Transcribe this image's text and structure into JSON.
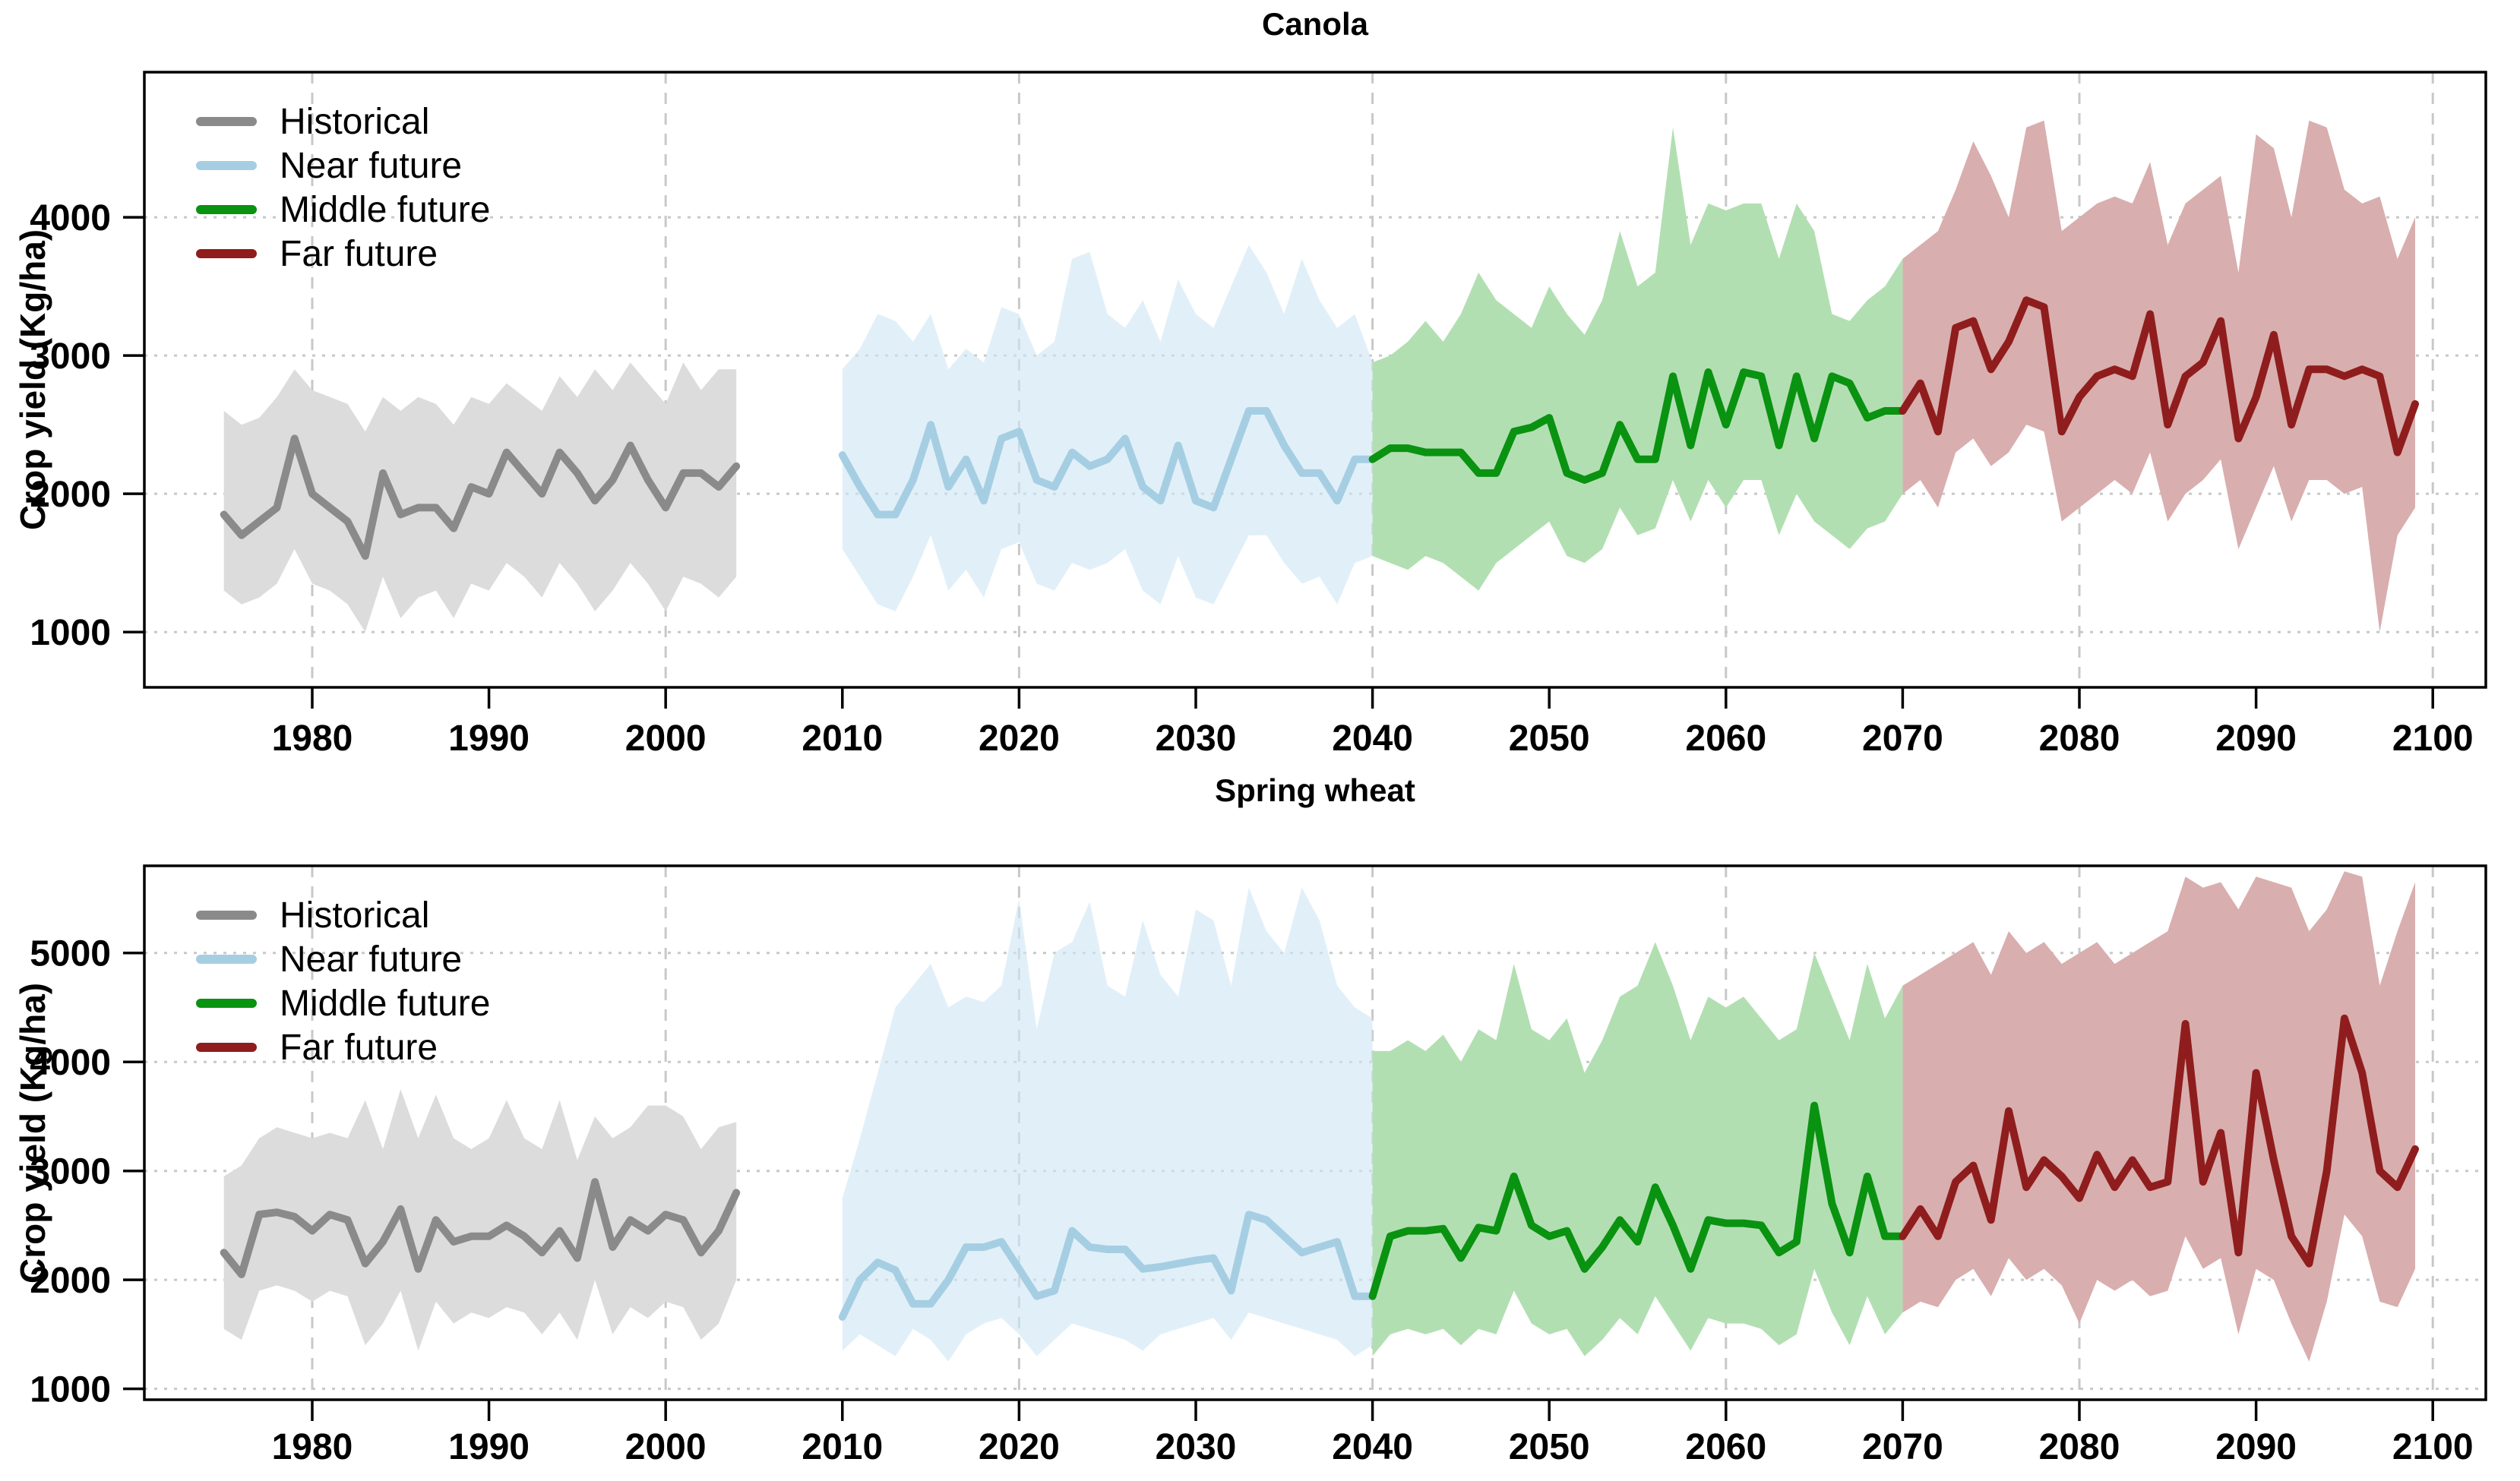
{
  "figure": {
    "background": "#ffffff",
    "description": "Two stacked time-series panels of simulated crop yield with uncertainty bands for historical, near, middle and far future periods"
  },
  "colors": {
    "historical_line": "#8a8a8a",
    "historical_band": "#dcdcdc",
    "near_future_line": "#a6cee3",
    "near_future_band": "#cfe7f3",
    "middle_future_line": "#0a9211",
    "middle_future_band": "#b2dfb2",
    "far_future_line": "#8f1d1d",
    "far_future_band": "#d9aeae",
    "grid": "#c8c8c8",
    "axis": "#000000"
  },
  "chart_data": [
    {
      "type": "line",
      "title": "Canola",
      "y_axis": {
        "label": "Crop yield (Kg/ha)",
        "ticks": [
          1000,
          2000,
          3000,
          4000
        ],
        "range": [
          600,
          5050
        ]
      },
      "x_axis": {
        "ticks": [
          1980,
          1990,
          2000,
          2010,
          2020,
          2030,
          2040,
          2050,
          2060,
          2070,
          2080,
          2090,
          2100
        ],
        "gridlines": [
          1980,
          2000,
          2020,
          2040,
          2060,
          2080,
          2100
        ],
        "range": [
          1970.5,
          2103
        ]
      },
      "grid": "on",
      "legend_position": "top-left",
      "segments": [
        {
          "name": "Historical",
          "line_color": "#8a8a8a",
          "band_color": "#dcdcdc",
          "band_opacity": 1,
          "year_start": 1975,
          "year_end": 2004,
          "line": [
            1850,
            1700,
            1800,
            1900,
            2400,
            2000,
            1900,
            1800,
            1550,
            2150,
            1850,
            1900,
            1900,
            1750,
            2050,
            2000,
            2300,
            2150,
            2000,
            2300,
            2150,
            1950,
            2100,
            2350,
            2100,
            1900,
            2150,
            2150,
            2050,
            2200
          ],
          "band_high": [
            2600,
            2500,
            2550,
            2700,
            2900,
            2750,
            2700,
            2650,
            2450,
            2700,
            2600,
            2700,
            2650,
            2500,
            2700,
            2650,
            2800,
            2700,
            2600,
            2850,
            2700,
            2900,
            2750,
            2950,
            2800,
            2650,
            2950,
            2750,
            2900,
            2900
          ],
          "band_low": [
            1300,
            1200,
            1250,
            1350,
            1600,
            1350,
            1300,
            1200,
            1000,
            1400,
            1100,
            1250,
            1300,
            1100,
            1350,
            1300,
            1500,
            1400,
            1250,
            1500,
            1350,
            1150,
            1300,
            1500,
            1350,
            1150,
            1400,
            1350,
            1250,
            1400
          ]
        },
        {
          "name": "Near future",
          "line_color": "#a6cee3",
          "band_color": "#cfe7f3",
          "band_opacity": 0.62,
          "year_start": 2010,
          "year_end": 2040,
          "line": [
            2280,
            2050,
            1850,
            1850,
            2100,
            2500,
            2050,
            2250,
            1950,
            2400,
            2450,
            2100,
            2050,
            2300,
            2200,
            2250,
            2400,
            2050,
            1950,
            2350,
            1950,
            1900,
            2250,
            2600,
            2600,
            2350,
            2150,
            2150,
            1950,
            2250,
            2250
          ],
          "band_high": [
            2900,
            3050,
            3300,
            3250,
            3100,
            3300,
            2900,
            3050,
            2950,
            3350,
            3300,
            3000,
            3100,
            3700,
            3750,
            3300,
            3200,
            3400,
            3100,
            3550,
            3300,
            3200,
            3500,
            3800,
            3600,
            3300,
            3700,
            3400,
            3200,
            3300,
            2950
          ],
          "band_low": [
            1600,
            1400,
            1200,
            1150,
            1400,
            1700,
            1300,
            1450,
            1250,
            1600,
            1650,
            1350,
            1300,
            1500,
            1450,
            1500,
            1600,
            1300,
            1200,
            1550,
            1250,
            1200,
            1450,
            1700,
            1700,
            1500,
            1350,
            1400,
            1200,
            1500,
            1550
          ]
        },
        {
          "name": "Middle future",
          "line_color": "#0a9211",
          "band_color": "#b2dfb2",
          "band_opacity": 1,
          "year_start": 2040,
          "year_end": 2070,
          "line": [
            2250,
            2330,
            2330,
            2300,
            2300,
            2300,
            2150,
            2150,
            2450,
            2480,
            2550,
            2150,
            2100,
            2150,
            2500,
            2250,
            2250,
            2850,
            2350,
            2880,
            2500,
            2880,
            2850,
            2350,
            2850,
            2400,
            2850,
            2800,
            2550,
            2600,
            2600
          ],
          "band_high": [
            2950,
            3000,
            3100,
            3250,
            3100,
            3300,
            3600,
            3400,
            3300,
            3200,
            3500,
            3300,
            3150,
            3400,
            3900,
            3500,
            3600,
            4650,
            3800,
            4100,
            4050,
            4100,
            4100,
            3700,
            4100,
            3900,
            3300,
            3250,
            3400,
            3500,
            3700
          ],
          "band_low": [
            1550,
            1500,
            1450,
            1550,
            1500,
            1400,
            1300,
            1500,
            1600,
            1700,
            1800,
            1550,
            1500,
            1600,
            1900,
            1700,
            1750,
            2100,
            1800,
            2100,
            1900,
            2100,
            2100,
            1700,
            2000,
            1800,
            1700,
            1600,
            1750,
            1800,
            2000
          ]
        },
        {
          "name": "Far future",
          "line_color": "#8f1d1d",
          "band_color": "#d9aeae",
          "band_opacity": 1,
          "year_start": 2070,
          "year_end": 2099,
          "line": [
            2600,
            2800,
            2450,
            3200,
            3250,
            2900,
            3100,
            3400,
            3350,
            2450,
            2700,
            2850,
            2900,
            2850,
            3300,
            2500,
            2850,
            2950,
            3250,
            2400,
            2700,
            3150,
            2500,
            2900,
            2900,
            2850,
            2900,
            2850,
            2300,
            2650
          ],
          "band_high": [
            3700,
            3800,
            3900,
            4200,
            4550,
            4300,
            4000,
            4650,
            4700,
            3900,
            4000,
            4100,
            4150,
            4100,
            4400,
            3800,
            4100,
            4200,
            4300,
            3600,
            4600,
            4500,
            4000,
            4700,
            4650,
            4200,
            4100,
            4150,
            3700,
            4000
          ],
          "band_low": [
            2000,
            2100,
            1900,
            2300,
            2400,
            2200,
            2300,
            2500,
            2450,
            1800,
            1900,
            2000,
            2100,
            2000,
            2300,
            1800,
            2000,
            2100,
            2250,
            1600,
            1900,
            2200,
            1800,
            2100,
            2100,
            2000,
            2050,
            1000,
            1700,
            1900
          ]
        }
      ]
    },
    {
      "type": "line",
      "title": "Spring wheat",
      "y_axis": {
        "label": "Crop yield (Kg/ha)",
        "ticks": [
          1000,
          2000,
          3000,
          4000,
          5000
        ],
        "range": [
          900,
          5800
        ]
      },
      "x_axis": {
        "ticks": [
          1980,
          1990,
          2000,
          2010,
          2020,
          2030,
          2040,
          2050,
          2060,
          2070,
          2080,
          2090,
          2100
        ],
        "gridlines": [
          1980,
          2000,
          2020,
          2040,
          2060,
          2080,
          2100
        ],
        "range": [
          1970.5,
          2103
        ]
      },
      "grid": "on",
      "legend_position": "top-left",
      "segments": [
        {
          "name": "Historical",
          "line_color": "#8a8a8a",
          "band_color": "#dcdcdc",
          "band_opacity": 1,
          "year_start": 1975,
          "year_end": 2004,
          "line": [
            2250,
            2050,
            2600,
            2620,
            2580,
            2450,
            2600,
            2550,
            2150,
            2350,
            2650,
            2100,
            2550,
            2350,
            2400,
            2400,
            2500,
            2400,
            2250,
            2450,
            2200,
            2900,
            2300,
            2550,
            2450,
            2600,
            2550,
            2250,
            2450,
            2800
          ],
          "band_high": [
            2950,
            3050,
            3300,
            3400,
            3350,
            3300,
            3350,
            3300,
            3650,
            3200,
            3750,
            3300,
            3700,
            3300,
            3200,
            3300,
            3650,
            3300,
            3200,
            3650,
            3100,
            3500,
            3300,
            3400,
            3600,
            3600,
            3500,
            3200,
            3400,
            3450
          ],
          "band_low": [
            1550,
            1450,
            1900,
            1950,
            1900,
            1800,
            1900,
            1850,
            1400,
            1600,
            1900,
            1350,
            1800,
            1600,
            1700,
            1650,
            1750,
            1700,
            1500,
            1700,
            1450,
            2000,
            1500,
            1750,
            1650,
            1800,
            1750,
            1450,
            1600,
            2000
          ]
        },
        {
          "name": "Near future",
          "line_color": "#a6cee3",
          "band_color": "#cfe7f3",
          "band_opacity": 0.62,
          "year_start": 2010,
          "year_end": 2040,
          "line": [
            1660,
            2000,
            2160,
            2090,
            1780,
            1780,
            2000,
            2300,
            2300,
            2350,
            2100,
            1850,
            1900,
            2450,
            2300,
            2280,
            2280,
            2100,
            2120,
            2150,
            2180,
            2200,
            1900,
            2600,
            2550,
            2400,
            2250,
            2300,
            2350,
            1850,
            1850
          ],
          "band_high": [
            2750,
            3300,
            3900,
            4500,
            4700,
            4900,
            4500,
            4600,
            4550,
            4700,
            5500,
            4300,
            5000,
            5100,
            5470,
            4700,
            4600,
            5300,
            4800,
            4600,
            5400,
            5300,
            4700,
            5600,
            5200,
            5000,
            5600,
            5300,
            4700,
            4500,
            4400
          ],
          "band_low": [
            1350,
            1500,
            1400,
            1300,
            1550,
            1450,
            1250,
            1500,
            1600,
            1650,
            1500,
            1300,
            1450,
            1600,
            1550,
            1500,
            1450,
            1350,
            1500,
            1550,
            1600,
            1650,
            1450,
            1700,
            1650,
            1600,
            1550,
            1500,
            1450,
            1300,
            1400
          ]
        },
        {
          "name": "Middle future",
          "line_color": "#0a9211",
          "band_color": "#b2dfb2",
          "band_opacity": 1,
          "year_start": 2040,
          "year_end": 2070,
          "line": [
            1850,
            2400,
            2450,
            2450,
            2470,
            2200,
            2480,
            2450,
            2950,
            2500,
            2400,
            2450,
            2100,
            2300,
            2550,
            2350,
            2850,
            2500,
            2100,
            2550,
            2520,
            2520,
            2500,
            2250,
            2350,
            3600,
            2700,
            2250,
            2950,
            2400,
            2400
          ],
          "band_high": [
            4100,
            4100,
            4200,
            4100,
            4250,
            4000,
            4300,
            4200,
            4900,
            4300,
            4200,
            4400,
            3900,
            4200,
            4600,
            4700,
            5100,
            4700,
            4200,
            4600,
            4500,
            4600,
            4400,
            4200,
            4300,
            5000,
            4600,
            4200,
            4900,
            4400,
            4700
          ],
          "band_low": [
            1300,
            1500,
            1550,
            1500,
            1550,
            1400,
            1550,
            1500,
            1900,
            1600,
            1500,
            1550,
            1300,
            1450,
            1650,
            1500,
            1850,
            1600,
            1350,
            1650,
            1600,
            1600,
            1550,
            1400,
            1500,
            2100,
            1700,
            1400,
            1850,
            1500,
            1700
          ]
        },
        {
          "name": "Far future",
          "line_color": "#8f1d1d",
          "band_color": "#d9aeae",
          "band_opacity": 1,
          "year_start": 2070,
          "year_end": 2099,
          "line": [
            2400,
            2650,
            2400,
            2900,
            3050,
            2550,
            3550,
            2850,
            3100,
            2950,
            2750,
            3150,
            2850,
            3100,
            2850,
            2900,
            4350,
            2900,
            3350,
            2250,
            3900,
            3100,
            2400,
            2150,
            3000,
            4400,
            3900,
            3000,
            2850,
            3200
          ],
          "band_high": [
            4700,
            4800,
            4900,
            5000,
            5100,
            4800,
            5200,
            5000,
            5100,
            4900,
            5000,
            5100,
            4900,
            5000,
            5100,
            5200,
            5700,
            5600,
            5650,
            5400,
            5700,
            5650,
            5600,
            5200,
            5400,
            5750,
            5700,
            4700,
            5200,
            5650
          ],
          "band_low": [
            1700,
            1800,
            1750,
            2000,
            2100,
            1850,
            2200,
            2000,
            2100,
            1950,
            1600,
            2000,
            1900,
            2000,
            1850,
            1900,
            2400,
            2100,
            2200,
            1500,
            2100,
            2000,
            1600,
            1250,
            1800,
            2600,
            2400,
            1800,
            1750,
            2100
          ]
        }
      ]
    }
  ]
}
